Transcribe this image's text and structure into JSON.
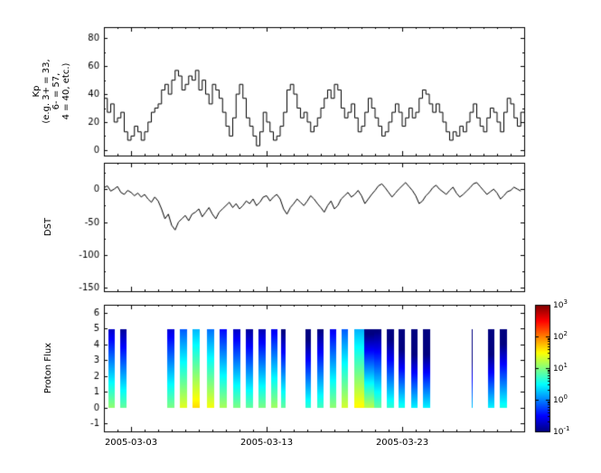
{
  "figure": {
    "background_color": "#ffffff",
    "frame_color": "#000000",
    "x_axis": {
      "range_days": [
        0,
        31
      ],
      "tick_days": [
        2,
        12,
        22
      ],
      "tick_labels": [
        "2005-03-03",
        "2005-03-13",
        "2005-03-23"
      ]
    }
  },
  "chart_data": [
    {
      "type": "line",
      "style": "steps",
      "ylabel": "Kp\n(e.g. 3+ = 33,\n6- = 57,\n4 = 40, etc.)",
      "ylim": [
        -4,
        88
      ],
      "yticks": [
        0,
        20,
        40,
        60,
        80
      ],
      "yticks_minor": [
        10,
        30,
        50,
        70
      ],
      "line_color": "#000000",
      "x_step_days": 0.25,
      "values": [
        37,
        27,
        33,
        20,
        23,
        27,
        13,
        7,
        10,
        17,
        13,
        7,
        13,
        20,
        27,
        30,
        33,
        43,
        47,
        40,
        50,
        57,
        53,
        43,
        47,
        53,
        50,
        57,
        43,
        50,
        40,
        33,
        47,
        43,
        37,
        27,
        17,
        10,
        23,
        40,
        47,
        37,
        23,
        17,
        10,
        3,
        13,
        27,
        20,
        13,
        7,
        10,
        17,
        27,
        43,
        47,
        40,
        30,
        23,
        27,
        20,
        13,
        17,
        23,
        30,
        37,
        43,
        37,
        47,
        43,
        30,
        23,
        27,
        33,
        23,
        13,
        17,
        27,
        37,
        30,
        23,
        17,
        10,
        13,
        20,
        27,
        33,
        27,
        17,
        23,
        30,
        23,
        27,
        37,
        43,
        40,
        33,
        27,
        33,
        27,
        20,
        13,
        7,
        13,
        10,
        17,
        13,
        20,
        27,
        33,
        23,
        17,
        13,
        23,
        30,
        27,
        20,
        13,
        27,
        37,
        33,
        23,
        17,
        27
      ]
    },
    {
      "type": "line",
      "style": "line",
      "ylabel": "DST",
      "ylim": [
        -155,
        40
      ],
      "yticks": [
        0,
        -50,
        -100,
        -150
      ],
      "yticks_minor": [
        25,
        -25,
        -75,
        -125
      ],
      "line_color": "#000000",
      "x_step_days": 0.25,
      "values": [
        2,
        5,
        -3,
        0,
        4,
        -5,
        -8,
        -2,
        -5,
        -10,
        -6,
        -12,
        -8,
        -15,
        -20,
        -12,
        -18,
        -30,
        -45,
        -38,
        -55,
        -62,
        -50,
        -45,
        -40,
        -48,
        -38,
        -35,
        -30,
        -42,
        -35,
        -28,
        -38,
        -45,
        -35,
        -30,
        -25,
        -20,
        -28,
        -22,
        -30,
        -25,
        -18,
        -22,
        -15,
        -25,
        -20,
        -12,
        -10,
        -18,
        -12,
        -8,
        -15,
        -30,
        -38,
        -28,
        -22,
        -15,
        -20,
        -25,
        -18,
        -10,
        -15,
        -22,
        -28,
        -35,
        -25,
        -18,
        -30,
        -25,
        -15,
        -10,
        -5,
        -12,
        -8,
        -2,
        -10,
        -22,
        -15,
        -8,
        -2,
        5,
        8,
        2,
        -5,
        -12,
        -6,
        0,
        5,
        10,
        4,
        -2,
        -10,
        -22,
        -18,
        -10,
        -5,
        2,
        6,
        0,
        -4,
        -8,
        -2,
        3,
        -6,
        -12,
        -8,
        -3,
        2,
        8,
        10,
        4,
        -2,
        -8,
        -4,
        0,
        -6,
        -15,
        -10,
        -4,
        -2,
        3,
        0,
        -3
      ]
    },
    {
      "type": "heatmap",
      "ylabel": "Proton Flux",
      "ylim": [
        -1.5,
        6.5
      ],
      "yticks": [
        -1,
        0,
        1,
        2,
        3,
        4,
        5,
        6
      ],
      "bar_y_range": [
        0,
        5
      ],
      "xticklabels": [
        "2005-03-03",
        "2005-03-13",
        "2005-03-23"
      ],
      "colorbar": {
        "colormap": "jet",
        "scale": "log",
        "min": 0.1,
        "max": 1000,
        "tick_exponents": [
          3,
          2,
          1,
          0,
          -1
        ]
      },
      "bars": [
        {
          "start_day": 0.35,
          "width_days": 0.45,
          "flux_y0": 12,
          "scale_height": 1.2
        },
        {
          "start_day": 1.2,
          "width_days": 0.45,
          "flux_y0": 8,
          "scale_height": 1.2
        },
        {
          "start_day": 4.65,
          "width_days": 0.5,
          "flux_y0": 10,
          "scale_height": 1.3
        },
        {
          "start_day": 5.6,
          "width_days": 0.5,
          "flux_y0": 25,
          "scale_height": 1.4
        },
        {
          "start_day": 6.55,
          "width_days": 0.55,
          "flux_y0": 45,
          "scale_height": 1.5
        },
        {
          "start_day": 7.6,
          "width_days": 0.55,
          "flux_y0": 30,
          "scale_height": 1.4
        },
        {
          "start_day": 8.55,
          "width_days": 0.5,
          "flux_y0": 15,
          "scale_height": 1.3
        },
        {
          "start_day": 9.5,
          "width_days": 0.5,
          "flux_y0": 10,
          "scale_height": 1.25
        },
        {
          "start_day": 10.45,
          "width_days": 0.5,
          "flux_y0": 8,
          "scale_height": 1.2
        },
        {
          "start_day": 11.4,
          "width_days": 0.5,
          "flux_y0": 10,
          "scale_height": 1.2
        },
        {
          "start_day": 12.3,
          "width_days": 0.45,
          "flux_y0": 14,
          "scale_height": 1.25
        },
        {
          "start_day": 13.05,
          "width_days": 0.35,
          "flux_y0": 8,
          "scale_height": 1.1
        },
        {
          "start_day": 14.85,
          "width_days": 0.4,
          "flux_y0": 5,
          "scale_height": 1.1
        },
        {
          "start_day": 15.75,
          "width_days": 0.45,
          "flux_y0": 6,
          "scale_height": 1.2
        },
        {
          "start_day": 16.65,
          "width_days": 0.45,
          "flux_y0": 12,
          "scale_height": 1.3
        },
        {
          "start_day": 17.5,
          "width_days": 0.45,
          "flux_y0": 22,
          "scale_height": 1.45
        },
        {
          "start_day": 18.45,
          "width_days": 0.7,
          "flux_y0": 35,
          "scale_height": 1.6
        },
        {
          "start_day": 19.2,
          "width_days": 0.7,
          "flux_y0": 18,
          "scale_height": 0.9
        },
        {
          "start_day": 19.95,
          "width_days": 0.5,
          "flux_y0": 8,
          "scale_height": 1.1
        },
        {
          "start_day": 20.85,
          "width_days": 0.5,
          "flux_y0": 5,
          "scale_height": 1.1
        },
        {
          "start_day": 21.75,
          "width_days": 0.45,
          "flux_y0": 4,
          "scale_height": 1.0
        },
        {
          "start_day": 22.65,
          "width_days": 0.45,
          "flux_y0": 3,
          "scale_height": 1.0
        },
        {
          "start_day": 23.5,
          "width_days": 0.5,
          "flux_y0": 3,
          "scale_height": 1.0
        },
        {
          "start_day": 27.1,
          "width_days": 0.08,
          "flux_y0": 2,
          "scale_height": 1.0
        },
        {
          "start_day": 28.3,
          "width_days": 0.45,
          "flux_y0": 3,
          "scale_height": 1.0
        },
        {
          "start_day": 29.2,
          "width_days": 0.5,
          "flux_y0": 4,
          "scale_height": 1.1
        }
      ]
    }
  ]
}
